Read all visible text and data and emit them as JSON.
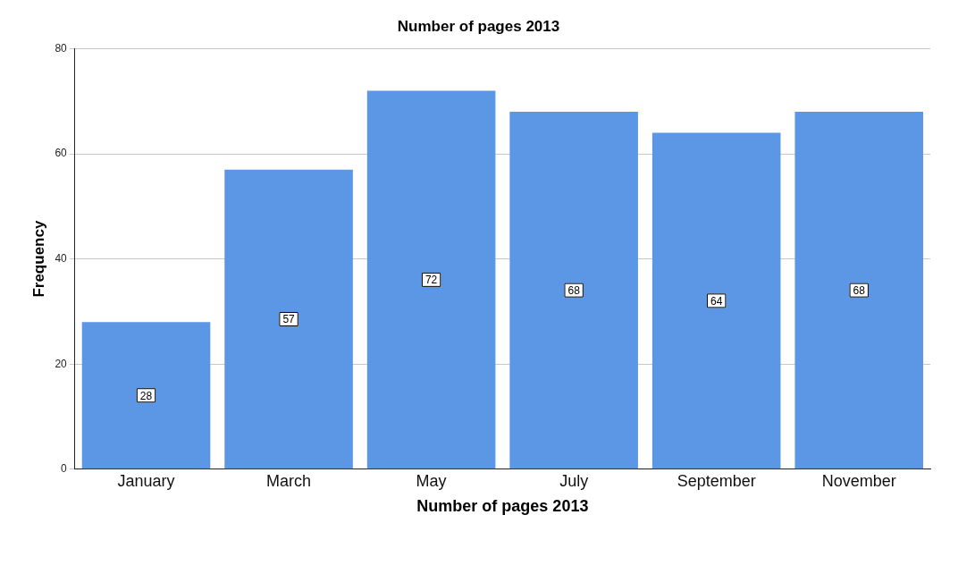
{
  "chart_data": {
    "type": "bar",
    "title": "Number of pages 2013",
    "xlabel": "Number of pages 2013",
    "ylabel": "Frequency",
    "categories": [
      "January",
      "March",
      "May",
      "July",
      "September",
      "November"
    ],
    "values": [
      28,
      57,
      72,
      68,
      64,
      68
    ],
    "color": "#5b97e5",
    "ylim": [
      0,
      80
    ],
    "yticks": [
      0,
      20,
      40,
      60,
      80
    ],
    "grid": "y",
    "data_labels": true
  }
}
